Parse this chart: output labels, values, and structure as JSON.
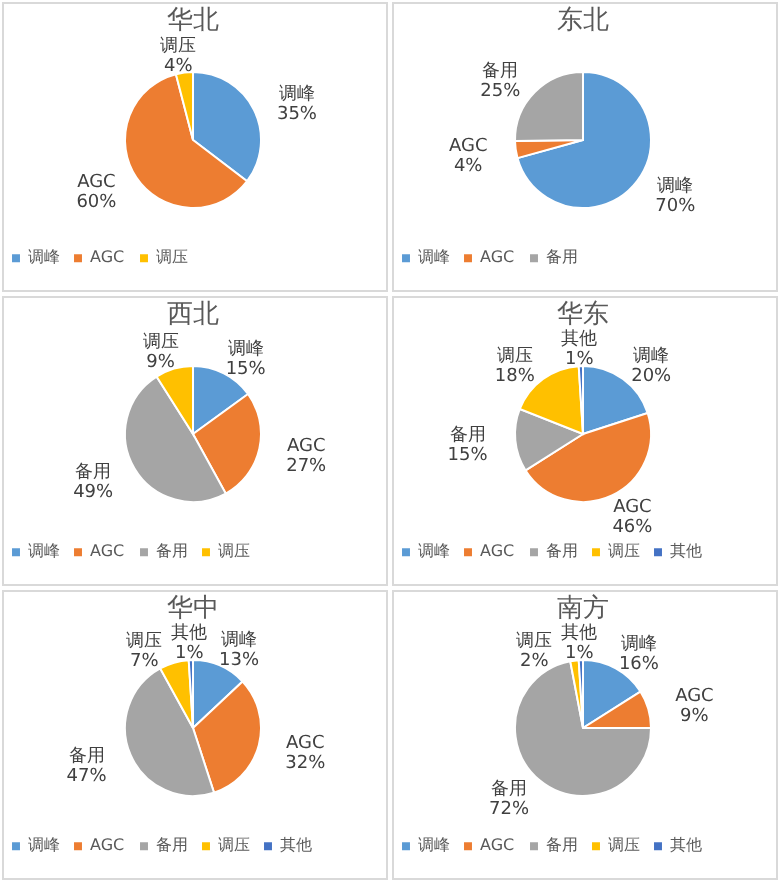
{
  "chart_data": [
    {
      "type": "pie",
      "title": "华北",
      "categories": [
        "调峰",
        "AGC",
        "调压"
      ],
      "values": [
        35,
        60,
        4
      ],
      "value_labels": [
        "35%",
        "60%",
        "4%"
      ],
      "colors": [
        "#5b9bd5",
        "#ed7d31",
        "#ffc000"
      ],
      "legend": "bottom"
    },
    {
      "type": "pie",
      "title": "东北",
      "categories": [
        "调峰",
        "AGC",
        "备用"
      ],
      "values": [
        70,
        4,
        25
      ],
      "value_labels": [
        "70%",
        "4%",
        "25%"
      ],
      "colors": [
        "#5b9bd5",
        "#ed7d31",
        "#a5a5a5"
      ],
      "legend": "bottom"
    },
    {
      "type": "pie",
      "title": "西北",
      "categories": [
        "调峰",
        "AGC",
        "备用",
        "调压"
      ],
      "values": [
        15,
        27,
        49,
        9
      ],
      "value_labels": [
        "15%",
        "27%",
        "49%",
        "9%"
      ],
      "colors": [
        "#5b9bd5",
        "#ed7d31",
        "#a5a5a5",
        "#ffc000"
      ],
      "legend": "bottom"
    },
    {
      "type": "pie",
      "title": "华东",
      "categories": [
        "调峰",
        "AGC",
        "备用",
        "调压",
        "其他"
      ],
      "values": [
        20,
        46,
        15,
        18,
        1
      ],
      "value_labels": [
        "20%",
        "46%",
        "15%",
        "18%",
        "1%"
      ],
      "colors": [
        "#5b9bd5",
        "#ed7d31",
        "#a5a5a5",
        "#ffc000",
        "#4472c4"
      ],
      "legend": "bottom"
    },
    {
      "type": "pie",
      "title": "华中",
      "categories": [
        "调峰",
        "AGC",
        "备用",
        "调压",
        "其他"
      ],
      "values": [
        13,
        32,
        47,
        7,
        1
      ],
      "value_labels": [
        "13%",
        "32%",
        "47%",
        "7%",
        "1%"
      ],
      "colors": [
        "#5b9bd5",
        "#ed7d31",
        "#a5a5a5",
        "#ffc000",
        "#4472c4"
      ],
      "legend": "bottom"
    },
    {
      "type": "pie",
      "title": "南方",
      "categories": [
        "调峰",
        "AGC",
        "备用",
        "调压",
        "其他"
      ],
      "values": [
        16,
        9,
        72,
        2,
        1
      ],
      "value_labels": [
        "16%",
        "9%",
        "72%",
        "2%",
        "1%"
      ],
      "colors": [
        "#5b9bd5",
        "#ed7d31",
        "#a5a5a5",
        "#ffc000",
        "#4472c4"
      ],
      "legend": "bottom"
    }
  ]
}
